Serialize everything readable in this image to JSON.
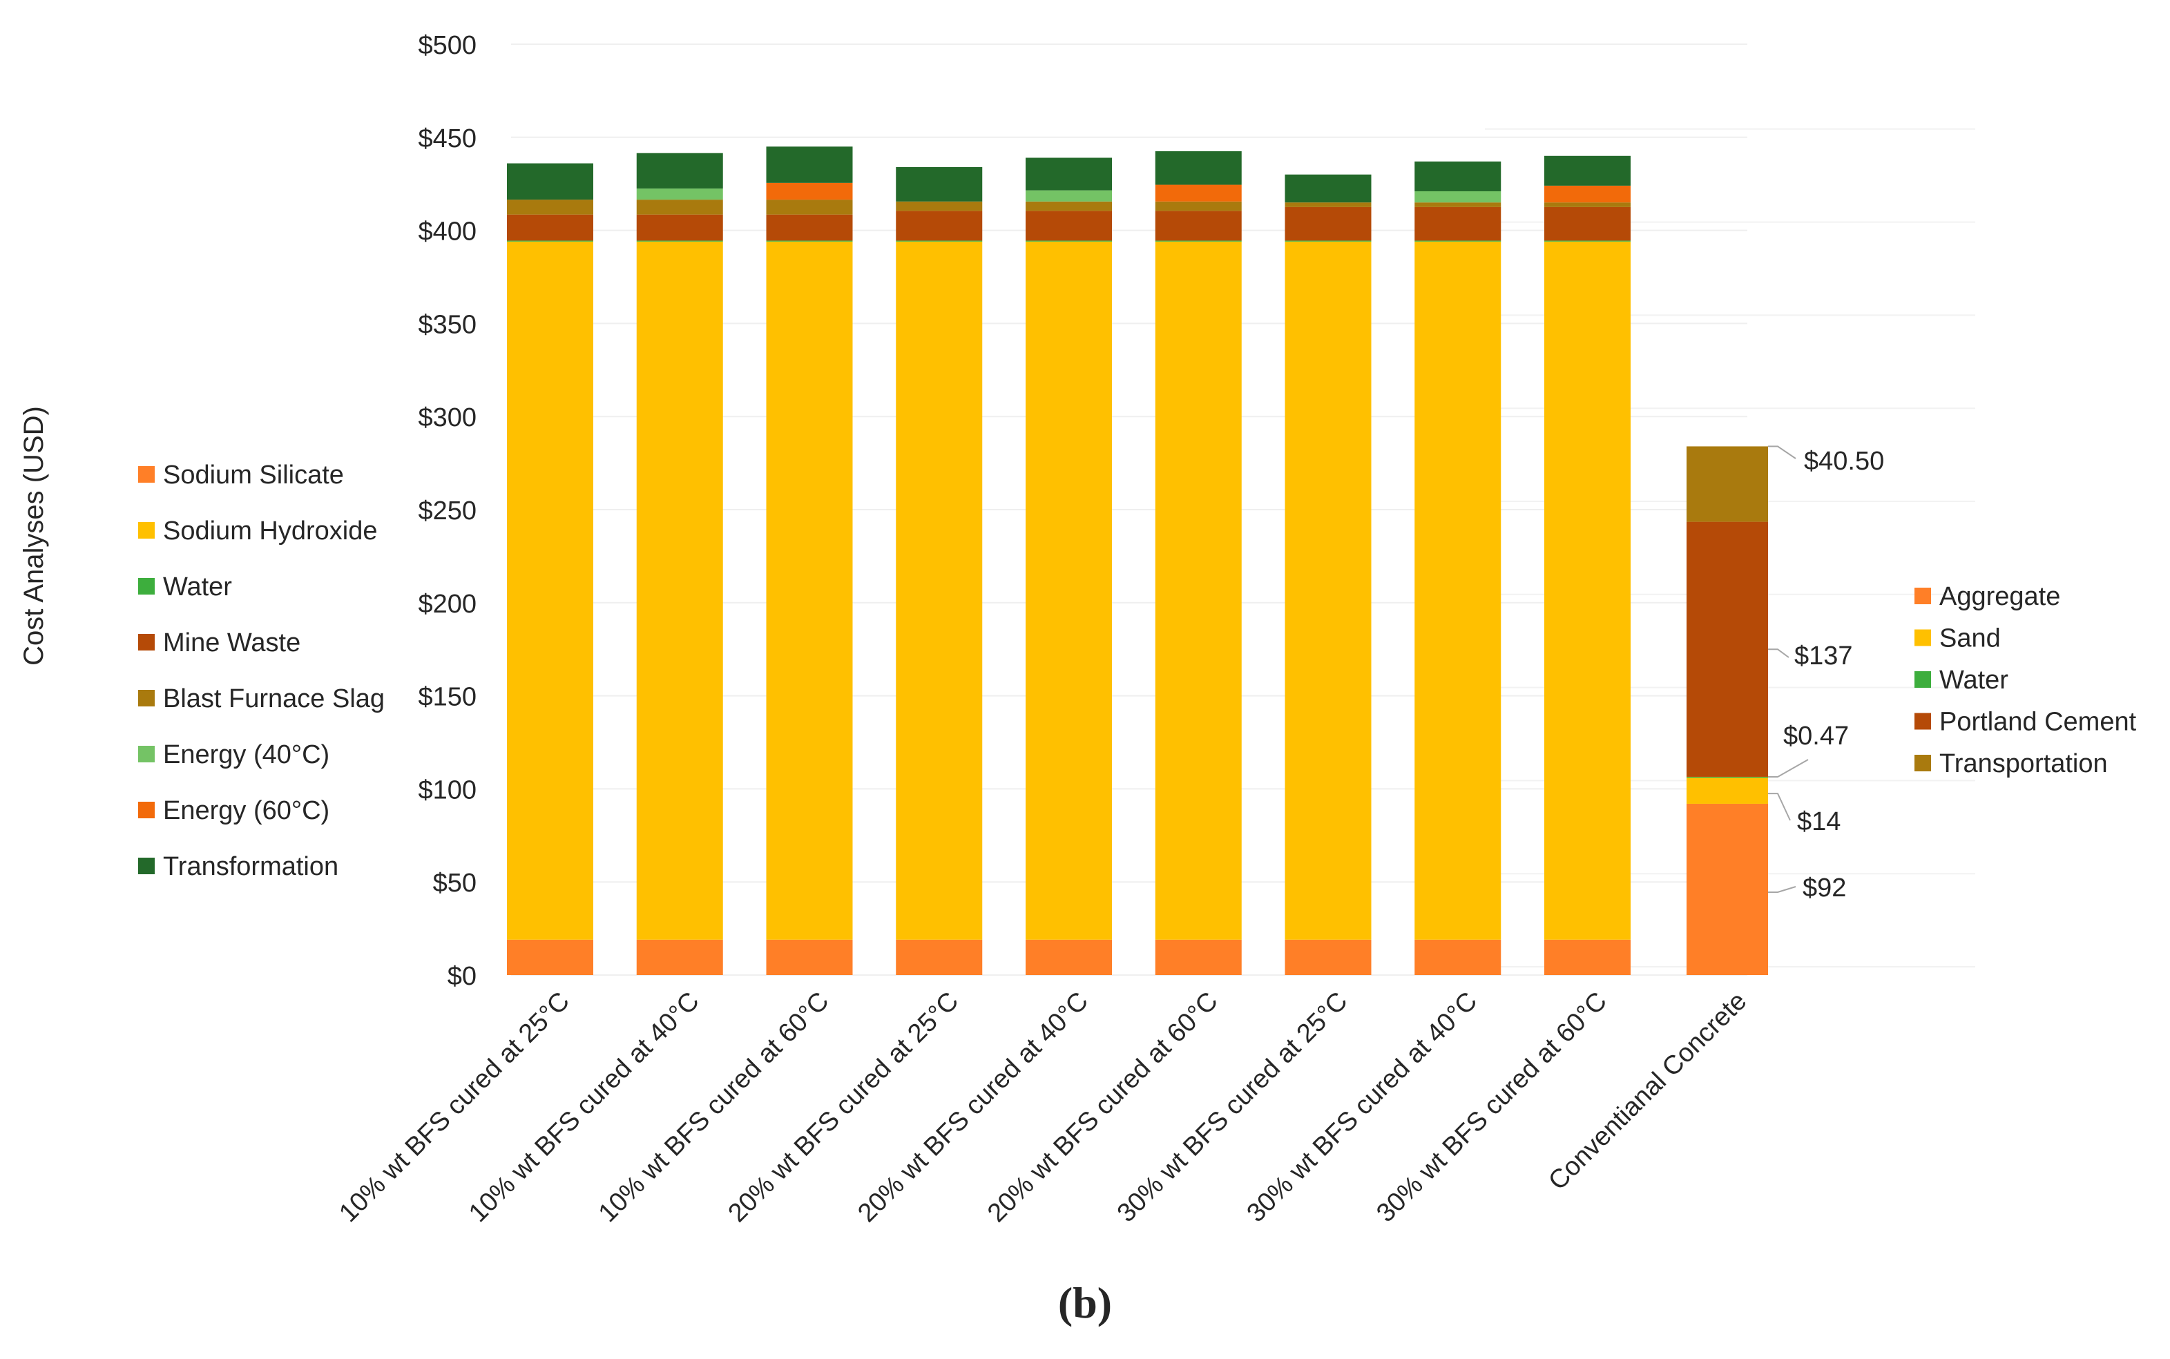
{
  "panel_label": "(b)",
  "chart_data": {
    "type": "bar",
    "stacked": true,
    "ylabel": "Cost Analyses  (USD)",
    "ylim": [
      0,
      500
    ],
    "y_ticks": [
      {
        "value": 0,
        "label": "$0"
      },
      {
        "value": 50,
        "label": "$50"
      },
      {
        "value": 100,
        "label": "$100"
      },
      {
        "value": 150,
        "label": "$150"
      },
      {
        "value": 200,
        "label": "$200"
      },
      {
        "value": 250,
        "label": "$250"
      },
      {
        "value": 300,
        "label": "$300"
      },
      {
        "value": 350,
        "label": "$350"
      },
      {
        "value": 400,
        "label": "$400"
      },
      {
        "value": 450,
        "label": "$450"
      },
      {
        "value": 500,
        "label": "$500"
      }
    ],
    "categories": [
      "10% wt BFS cured at 25°C",
      "10% wt BFS cured at 40°C",
      "10% wt BFS cured at 60°C",
      "20% wt BFS cured at 25°C",
      "20% wt BFS cured at 40°C",
      "20% wt BFS cured at 60°C",
      "30% wt BFS cured at 25°C",
      "30% wt BFS cured at 40°C",
      "30% wt BFS cured at 60°C"
    ],
    "series": [
      {
        "name": "Sodium Silicate",
        "color": "#FF7F27",
        "values": [
          19,
          19,
          19,
          19,
          19,
          19,
          19,
          19,
          19
        ]
      },
      {
        "name": "Sodium Hydroxide",
        "color": "#FFC000",
        "values": [
          375,
          375,
          375,
          375,
          375,
          375,
          375,
          375,
          375
        ]
      },
      {
        "name": "Water",
        "color": "#3DAE3D",
        "values": [
          0.5,
          0.5,
          0.5,
          0.5,
          0.5,
          0.5,
          0.5,
          0.5,
          0.5
        ]
      },
      {
        "name": "Mine Waste",
        "color": "#B54A07",
        "values": [
          14,
          14,
          14,
          16,
          16,
          16,
          18,
          18,
          18
        ]
      },
      {
        "name": "Blast Furnace Slag",
        "color": "#A97A0E",
        "values": [
          8,
          8,
          8,
          5,
          5,
          5,
          2.5,
          2.5,
          2.5
        ]
      },
      {
        "name": "Energy (40°C)",
        "color": "#74C365",
        "values": [
          0,
          6,
          0,
          0,
          6,
          0,
          0,
          6,
          0
        ]
      },
      {
        "name": "Energy (60°C)",
        "color": "#F26A0A",
        "values": [
          0,
          0,
          9,
          0,
          0,
          9,
          0,
          0,
          9
        ]
      },
      {
        "name": "Transformation",
        "color": "#23692A",
        "values": [
          19.5,
          19,
          19.5,
          18.5,
          17.5,
          18,
          15,
          16,
          16
        ]
      }
    ],
    "legend": {
      "placement": "left",
      "items": [
        {
          "label": "Sodium Silicate",
          "color": "#FF7F27"
        },
        {
          "label": "Sodium Hydroxide",
          "color": "#FFC000"
        },
        {
          "label": "Water",
          "color": "#3DAE3D"
        },
        {
          "label": "Mine Waste",
          "color": "#B54A07"
        },
        {
          "label": "Blast Furnace Slag",
          "color": "#A97A0E"
        },
        {
          "label": "Energy (40°C)",
          "color": "#74C365"
        },
        {
          "label": "Energy (60°C)",
          "color": "#F26A0A"
        },
        {
          "label": "Transformation",
          "color": "#23692A"
        }
      ]
    },
    "conventional": {
      "category": "Conventianal Concrete",
      "segments": [
        {
          "name": "Aggregate",
          "color": "#FF7F27",
          "value": 92,
          "label": "$92"
        },
        {
          "name": "Sand",
          "color": "#FFC000",
          "value": 14,
          "label": "$14"
        },
        {
          "name": "Water",
          "color": "#3DAE3D",
          "value": 0.47,
          "label": "$0.47"
        },
        {
          "name": "Portland Cement",
          "color": "#B54A07",
          "value": 137,
          "label": "$137"
        },
        {
          "name": "Transportation",
          "color": "#A97A0E",
          "value": 40.5,
          "label": "$40.50"
        }
      ],
      "legend": {
        "placement": "right",
        "items": [
          {
            "label": "Aggregate",
            "color": "#FF7F27"
          },
          {
            "label": "Sand",
            "color": "#FFC000"
          },
          {
            "label": "Water",
            "color": "#3DAE3D"
          },
          {
            "label": "Portland Cement",
            "color": "#B54A07"
          },
          {
            "label": "Transportation",
            "color": "#A97A0E"
          }
        ]
      }
    }
  }
}
